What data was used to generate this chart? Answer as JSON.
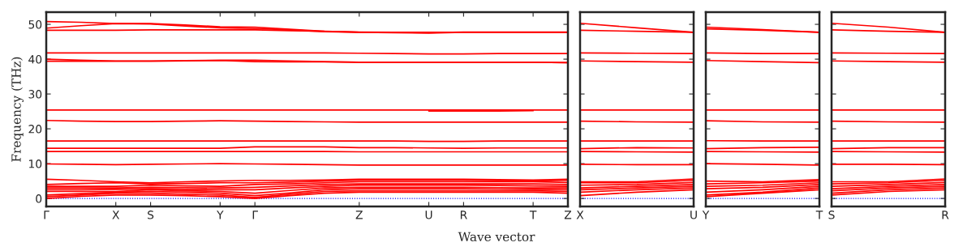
{
  "chart_data": [
    {
      "type": "line",
      "ylabel": "Frequency (THz)",
      "xlabel": "Wave vector",
      "categories": [
        "Γ",
        null,
        "X",
        "S",
        null,
        "Y",
        "Γ",
        null,
        null,
        "Z",
        null,
        "U",
        "R",
        null,
        "T",
        "Z"
      ],
      "ylim": [
        -2.3,
        53.5
      ],
      "yticks": [
        0,
        10,
        20,
        30,
        40,
        50
      ],
      "grid": false,
      "legend": false,
      "marker": "none",
      "line_style": "solid",
      "ref_lines": [
        {
          "axis": "y",
          "value": 0,
          "color": "#0000ff",
          "line_style": "dotted"
        }
      ],
      "series": [
        {
          "color": "#ff0000",
          "values": [
            50.8,
            50.6,
            50.2,
            50.2,
            49.8,
            49.3,
            49.2,
            48.6,
            48.0,
            47.7,
            47.7,
            47.7,
            47.7,
            47.7,
            47.7,
            47.7
          ]
        },
        {
          "color": "#ff0000",
          "values": [
            48.9,
            49.6,
            50.2,
            50.1,
            49.5,
            49.0,
            48.8,
            48.4,
            47.9,
            47.7,
            47.6,
            47.5,
            47.7,
            47.7,
            47.7,
            47.7
          ]
        },
        {
          "color": "#ff0000",
          "values": [
            48.3,
            48.3,
            48.3,
            48.4,
            48.4,
            48.4,
            48.4,
            48.2,
            48.0,
            47.8,
            47.7,
            47.6,
            47.8,
            47.8,
            47.8,
            47.8
          ]
        },
        {
          "color": "#ff0000",
          "values": [
            41.8,
            41.8,
            41.8,
            41.8,
            41.8,
            41.8,
            41.8,
            41.8,
            41.8,
            41.7,
            41.6,
            41.5,
            41.5,
            41.6,
            41.6,
            41.6
          ]
        },
        {
          "color": "#ff0000",
          "values": [
            40.0,
            39.7,
            39.5,
            39.5,
            39.6,
            39.7,
            39.7,
            39.5,
            39.3,
            39.1,
            39.1,
            39.1,
            39.1,
            39.1,
            39.1,
            39.0
          ]
        },
        {
          "color": "#ff0000",
          "values": [
            39.4,
            39.4,
            39.4,
            39.4,
            39.5,
            39.6,
            39.3,
            39.2,
            39.2,
            39.1,
            39.1,
            39.1,
            39.1,
            39.1,
            39.1,
            39.0
          ]
        },
        {
          "color": "#ff0000",
          "values": [
            25.4,
            25.4,
            25.4,
            25.4,
            25.4,
            25.4,
            25.4,
            25.4,
            25.4,
            25.4,
            25.4,
            25.4,
            25.4,
            25.4,
            25.4,
            25.4
          ]
        },
        {
          "color": "#ff0000",
          "values": [
            null,
            null,
            null,
            null,
            null,
            null,
            null,
            null,
            null,
            null,
            null,
            25.1,
            25.1,
            25.1,
            25.2,
            null
          ]
        },
        {
          "color": "#ff0000",
          "values": [
            22.4,
            22.2,
            22.1,
            22.1,
            22.2,
            22.3,
            22.2,
            22.1,
            22.0,
            21.9,
            21.9,
            21.9,
            21.9,
            21.9,
            21.9,
            21.9
          ]
        },
        {
          "color": "#ff0000",
          "values": [
            16.5,
            16.5,
            16.5,
            16.5,
            16.5,
            16.5,
            16.5,
            16.5,
            16.5,
            16.5,
            16.5,
            16.4,
            16.4,
            16.5,
            16.5,
            16.5
          ]
        },
        {
          "color": "#ff0000",
          "values": [
            14.4,
            14.4,
            14.4,
            14.4,
            14.4,
            14.4,
            14.8,
            14.8,
            14.8,
            14.6,
            14.6,
            14.5,
            14.4,
            14.5,
            14.5,
            14.5
          ]
        },
        {
          "color": "#ff0000",
          "values": [
            13.5,
            13.5,
            13.5,
            13.5,
            13.5,
            13.5,
            13.5,
            13.5,
            13.5,
            13.4,
            13.4,
            13.4,
            13.4,
            13.4,
            13.4,
            13.4
          ]
        },
        {
          "color": "#ff0000",
          "values": [
            9.9,
            9.8,
            9.7,
            9.8,
            9.9,
            10.0,
            9.9,
            9.8,
            9.7,
            9.6,
            9.6,
            9.6,
            9.6,
            9.6,
            9.6,
            9.6
          ]
        },
        {
          "color": "#ff0000",
          "values": [
            5.5,
            5.2,
            4.8,
            4.5,
            4.8,
            5.0,
            5.2,
            5.2,
            5.3,
            5.5,
            5.5,
            5.5,
            5.5,
            5.4,
            5.3,
            5.5
          ]
        },
        {
          "color": "#ff0000",
          "values": [
            4.0,
            4.3,
            4.5,
            4.2,
            4.3,
            4.5,
            4.5,
            4.7,
            5.0,
            5.2,
            5.2,
            5.2,
            5.2,
            5.1,
            5.0,
            5.2
          ]
        },
        {
          "color": "#ff0000",
          "values": [
            3.5,
            3.5,
            3.5,
            3.8,
            3.6,
            3.5,
            4.0,
            4.2,
            4.5,
            4.8,
            4.8,
            4.8,
            4.8,
            4.8,
            4.8,
            4.6
          ]
        },
        {
          "color": "#ff0000",
          "values": [
            3.0,
            3.0,
            3.0,
            3.2,
            3.1,
            3.0,
            3.2,
            3.6,
            4.0,
            4.2,
            4.2,
            4.2,
            4.2,
            4.2,
            4.2,
            4.0
          ]
        },
        {
          "color": "#ff0000",
          "values": [
            2.5,
            2.5,
            2.6,
            2.8,
            2.6,
            2.5,
            2.5,
            3.0,
            3.5,
            3.8,
            3.8,
            3.8,
            3.8,
            3.7,
            3.6,
            3.5
          ]
        },
        {
          "color": "#ff0000",
          "values": [
            2.0,
            2.0,
            2.0,
            2.5,
            2.2,
            2.0,
            1.5,
            2.3,
            3.0,
            3.2,
            3.2,
            3.2,
            3.2,
            3.1,
            3.0,
            3.0
          ]
        },
        {
          "color": "#ff0000",
          "values": [
            1.0,
            1.4,
            1.8,
            2.0,
            1.8,
            1.5,
            0.8,
            1.6,
            2.5,
            2.8,
            2.8,
            2.8,
            2.8,
            2.7,
            2.6,
            2.5
          ]
        },
        {
          "color": "#ff0000",
          "values": [
            0.5,
            1.0,
            1.5,
            1.5,
            1.2,
            1.0,
            0.3,
            1.2,
            2.0,
            2.2,
            2.2,
            2.2,
            2.2,
            2.2,
            2.2,
            2.0
          ]
        },
        {
          "color": "#ff0000",
          "values": [
            0,
            0.6,
            1.0,
            1.0,
            0.8,
            0.5,
            0,
            0.8,
            1.5,
            1.8,
            1.8,
            1.8,
            1.8,
            1.8,
            1.8,
            1.5
          ]
        }
      ]
    },
    {
      "type": "line",
      "categories": [
        "X",
        null,
        "U"
      ],
      "ylim": [
        -2.3,
        53.5
      ],
      "yticks": [
        {
          "value": 0,
          "label": null
        },
        {
          "value": 10,
          "label": null
        },
        {
          "value": 20,
          "label": null
        },
        {
          "value": 30,
          "label": null
        },
        {
          "value": 40,
          "label": null
        },
        {
          "value": 50,
          "label": null
        }
      ],
      "tick_labels": "x",
      "grid": false,
      "legend": false,
      "marker": "none",
      "line_style": "solid",
      "ref_lines": [
        {
          "axis": "y",
          "value": 0,
          "color": "#0000ff",
          "line_style": "dotted"
        }
      ],
      "series": [
        {
          "color": "#ff0000",
          "values": [
            50.3,
            49.0,
            47.7
          ]
        },
        {
          "color": "#ff0000",
          "values": [
            48.3,
            48.0,
            47.7
          ]
        },
        {
          "color": "#ff0000",
          "values": [
            41.8,
            41.7,
            41.6
          ]
        },
        {
          "color": "#ff0000",
          "values": [
            39.5,
            39.3,
            39.1
          ]
        },
        {
          "color": "#ff0000",
          "values": [
            25.4,
            25.4,
            25.4
          ]
        },
        {
          "color": "#ff0000",
          "values": [
            22.2,
            22.0,
            21.9
          ]
        },
        {
          "color": "#ff0000",
          "values": [
            16.5,
            16.5,
            16.5
          ]
        },
        {
          "color": "#ff0000",
          "values": [
            14.3,
            14.6,
            14.5
          ]
        },
        {
          "color": "#ff0000",
          "values": [
            13.5,
            13.4,
            13.3
          ]
        },
        {
          "color": "#ff0000",
          "values": [
            9.8,
            9.7,
            9.7
          ]
        },
        {
          "color": "#ff0000",
          "values": [
            4.8,
            4.8,
            5.6
          ]
        },
        {
          "color": "#ff0000",
          "values": [
            4.5,
            4.5,
            5.2
          ]
        },
        {
          "color": "#ff0000",
          "values": [
            3.8,
            4.0,
            4.6
          ]
        },
        {
          "color": "#ff0000",
          "values": [
            3.0,
            3.5,
            4.0
          ]
        },
        {
          "color": "#ff0000",
          "values": [
            2.5,
            3.0,
            3.5
          ]
        },
        {
          "color": "#ff0000",
          "values": [
            1.8,
            2.5,
            3.0
          ]
        },
        {
          "color": "#ff0000",
          "values": [
            0.8,
            1.8,
            2.5
          ]
        }
      ]
    },
    {
      "type": "line",
      "categories": [
        "Y",
        null,
        "T"
      ],
      "ylim": [
        -2.3,
        53.5
      ],
      "yticks": [
        {
          "value": 0,
          "label": null
        },
        {
          "value": 10,
          "label": null
        },
        {
          "value": 20,
          "label": null
        },
        {
          "value": 30,
          "label": null
        },
        {
          "value": 40,
          "label": null
        },
        {
          "value": 50,
          "label": null
        }
      ],
      "tick_labels": "x",
      "grid": false,
      "legend": false,
      "marker": "none",
      "line_style": "solid",
      "ref_lines": [
        {
          "axis": "y",
          "value": 0,
          "color": "#0000ff",
          "line_style": "dotted"
        }
      ],
      "series": [
        {
          "color": "#ff0000",
          "values": [
            49.2,
            48.5,
            47.7
          ]
        },
        {
          "color": "#ff0000",
          "values": [
            48.7,
            48.3,
            47.7
          ]
        },
        {
          "color": "#ff0000",
          "values": [
            41.8,
            41.6,
            41.6
          ]
        },
        {
          "color": "#ff0000",
          "values": [
            39.6,
            39.3,
            39.0
          ]
        },
        {
          "color": "#ff0000",
          "values": [
            25.4,
            25.4,
            25.4
          ]
        },
        {
          "color": "#ff0000",
          "values": [
            22.3,
            22.0,
            21.9
          ]
        },
        {
          "color": "#ff0000",
          "values": [
            16.6,
            16.5,
            16.5
          ]
        },
        {
          "color": "#ff0000",
          "values": [
            14.3,
            14.6,
            14.7
          ]
        },
        {
          "color": "#ff0000",
          "values": [
            13.5,
            13.4,
            13.3
          ]
        },
        {
          "color": "#ff0000",
          "values": [
            10.0,
            9.8,
            9.6
          ]
        },
        {
          "color": "#ff0000",
          "values": [
            5.0,
            4.8,
            5.4
          ]
        },
        {
          "color": "#ff0000",
          "values": [
            4.2,
            4.5,
            5.0
          ]
        },
        {
          "color": "#ff0000",
          "values": [
            3.5,
            3.8,
            4.5
          ]
        },
        {
          "color": "#ff0000",
          "values": [
            2.8,
            3.2,
            4.0
          ]
        },
        {
          "color": "#ff0000",
          "values": [
            1.8,
            2.5,
            3.5
          ]
        },
        {
          "color": "#ff0000",
          "values": [
            1.0,
            1.8,
            3.0
          ]
        },
        {
          "color": "#ff0000",
          "values": [
            0.5,
            1.5,
            2.5
          ]
        }
      ]
    },
    {
      "type": "line",
      "categories": [
        "S",
        null,
        "R"
      ],
      "ylim": [
        -2.3,
        53.5
      ],
      "yticks": [
        {
          "value": 0,
          "label": null
        },
        {
          "value": 10,
          "label": null
        },
        {
          "value": 20,
          "label": null
        },
        {
          "value": 30,
          "label": null
        },
        {
          "value": 40,
          "label": null
        },
        {
          "value": 50,
          "label": null
        }
      ],
      "tick_labels": "x",
      "grid": false,
      "legend": false,
      "marker": "none",
      "line_style": "solid",
      "ref_lines": [
        {
          "axis": "y",
          "value": 0,
          "color": "#0000ff",
          "line_style": "dotted"
        }
      ],
      "series": [
        {
          "color": "#ff0000",
          "values": [
            50.3,
            49.2,
            47.7
          ]
        },
        {
          "color": "#ff0000",
          "values": [
            48.4,
            48.0,
            47.7
          ]
        },
        {
          "color": "#ff0000",
          "values": [
            41.8,
            41.7,
            41.6
          ]
        },
        {
          "color": "#ff0000",
          "values": [
            39.5,
            39.3,
            39.1
          ]
        },
        {
          "color": "#ff0000",
          "values": [
            25.4,
            25.4,
            25.4
          ]
        },
        {
          "color": "#ff0000",
          "values": [
            22.2,
            22.0,
            21.9
          ]
        },
        {
          "color": "#ff0000",
          "values": [
            16.5,
            16.5,
            16.5
          ]
        },
        {
          "color": "#ff0000",
          "values": [
            14.3,
            14.6,
            14.6
          ]
        },
        {
          "color": "#ff0000",
          "values": [
            13.5,
            13.4,
            13.3
          ]
        },
        {
          "color": "#ff0000",
          "values": [
            9.8,
            9.8,
            9.7
          ]
        },
        {
          "color": "#ff0000",
          "values": [
            4.8,
            4.8,
            5.6
          ]
        },
        {
          "color": "#ff0000",
          "values": [
            4.2,
            4.5,
            5.2
          ]
        },
        {
          "color": "#ff0000",
          "values": [
            3.5,
            4.0,
            4.6
          ]
        },
        {
          "color": "#ff0000",
          "values": [
            2.8,
            3.5,
            4.0
          ]
        },
        {
          "color": "#ff0000",
          "values": [
            2.2,
            3.0,
            3.5
          ]
        },
        {
          "color": "#ff0000",
          "values": [
            1.5,
            2.5,
            3.0
          ]
        },
        {
          "color": "#ff0000",
          "values": [
            1.0,
            2.0,
            2.5
          ]
        }
      ]
    }
  ]
}
